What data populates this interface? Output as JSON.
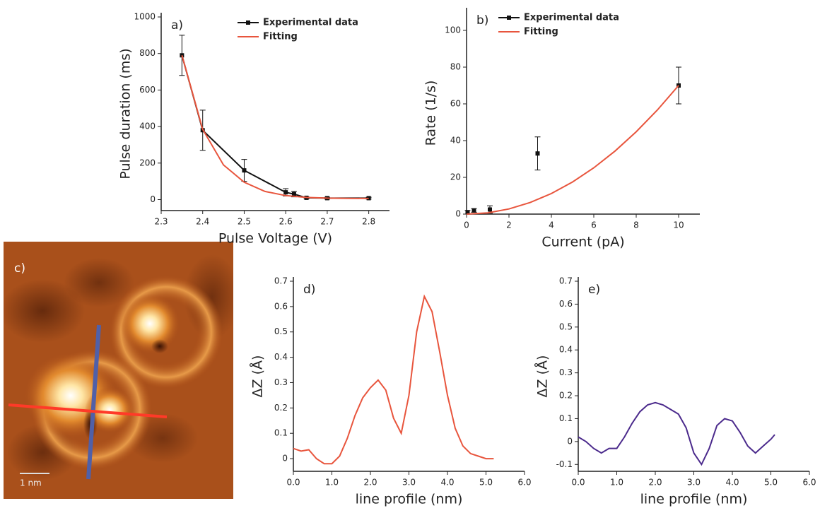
{
  "chart_data": [
    {
      "type": "errorline",
      "label": "a)",
      "xlabel": "Pulse Voltage (V)",
      "ylabel": "Pulse duration (ms)",
      "xlim": [
        2.3,
        2.85
      ],
      "ylim": [
        -60,
        1000
      ],
      "xticks": [
        2.3,
        2.4,
        2.5,
        2.6,
        2.7,
        2.8
      ],
      "yticks": [
        0,
        200,
        400,
        600,
        800,
        1000
      ],
      "legend": "upper right",
      "series": [
        {
          "name": "Experimental data",
          "color": "#111111",
          "marker": "square",
          "x": [
            2.35,
            2.4,
            2.5,
            2.6,
            2.62,
            2.65,
            2.7,
            2.8
          ],
          "values": [
            790,
            380,
            160,
            40,
            30,
            10,
            8,
            8
          ],
          "errors": [
            110,
            110,
            60,
            20,
            15,
            5,
            5,
            5
          ]
        },
        {
          "name": "Fitting",
          "color": "#e8553d",
          "x": [
            2.35,
            2.4,
            2.45,
            2.5,
            2.55,
            2.6,
            2.65,
            2.7,
            2.75,
            2.8
          ],
          "values": [
            790,
            385,
            190,
            95,
            45,
            22,
            12,
            8,
            7,
            6
          ]
        }
      ]
    },
    {
      "type": "errorline",
      "label": "b)",
      "xlabel": "Current (pA)",
      "ylabel": "Rate (1/s)",
      "xlim": [
        0,
        11
      ],
      "ylim": [
        0,
        110
      ],
      "xticks": [
        0,
        2,
        4,
        6,
        8,
        10
      ],
      "yticks": [
        0,
        20,
        40,
        60,
        80,
        100
      ],
      "legend": "upper left",
      "series": [
        {
          "name": "Experimental data",
          "color": "#111111",
          "marker": "square",
          "line": false,
          "x": [
            0.05,
            0.35,
            1.1,
            3.35,
            10
          ],
          "values": [
            1,
            2,
            2.5,
            33,
            70
          ],
          "errors": [
            1,
            1,
            2,
            9,
            10
          ]
        },
        {
          "name": "Fitting",
          "color": "#e8553d",
          "x": [
            0,
            1,
            2,
            3,
            4,
            5,
            6,
            7,
            8,
            9,
            10
          ],
          "values": [
            0,
            0.7,
            2.8,
            6.3,
            11.2,
            17.5,
            25.2,
            34.3,
            44.8,
            56.7,
            70
          ]
        }
      ]
    },
    {
      "type": "image",
      "label": "c)",
      "scale_bar": "1 nm"
    },
    {
      "type": "line",
      "label": "d)",
      "xlabel": "line profile (nm)",
      "ylabel": "ΔZ (Å)",
      "xlim": [
        0,
        6
      ],
      "ylim": [
        -0.05,
        0.7
      ],
      "xticks": [
        {
          "value": 0,
          "label": "0.0"
        },
        {
          "value": 1,
          "label": "1.0"
        },
        {
          "value": 2,
          "label": "2.0"
        },
        {
          "value": 3,
          "label": "3.0"
        },
        {
          "value": 4,
          "label": "4.0"
        },
        {
          "value": 5,
          "label": "5.0"
        },
        {
          "value": 6,
          "label": "6.0"
        }
      ],
      "yticks": [
        0,
        0.1,
        0.2,
        0.3,
        0.4,
        0.5,
        0.6,
        0.7
      ],
      "series": [
        {
          "color": "#e8553d",
          "x": [
            0,
            0.2,
            0.4,
            0.6,
            0.8,
            1.0,
            1.2,
            1.4,
            1.6,
            1.8,
            2.0,
            2.2,
            2.4,
            2.6,
            2.8,
            3.0,
            3.2,
            3.4,
            3.6,
            3.8,
            4.0,
            4.2,
            4.4,
            4.6,
            4.8,
            5.0,
            5.2
          ],
          "values": [
            0.04,
            0.03,
            0.035,
            0.0,
            -0.02,
            -0.02,
            0.01,
            0.08,
            0.17,
            0.24,
            0.28,
            0.31,
            0.27,
            0.16,
            0.1,
            0.25,
            0.5,
            0.64,
            0.58,
            0.42,
            0.25,
            0.12,
            0.05,
            0.02,
            0.01,
            0.0,
            0.0
          ]
        }
      ]
    },
    {
      "type": "line",
      "label": "e)",
      "xlabel": "line profile (nm)",
      "ylabel": "ΔZ (Å)",
      "xlim": [
        0,
        6
      ],
      "ylim": [
        -0.13,
        0.7
      ],
      "xticks": [
        {
          "value": 0,
          "label": "0.0"
        },
        {
          "value": 1,
          "label": "1.0"
        },
        {
          "value": 2,
          "label": "2.0"
        },
        {
          "value": 3,
          "label": "3.0"
        },
        {
          "value": 4,
          "label": "4.0"
        },
        {
          "value": 5,
          "label": "5.0"
        },
        {
          "value": 6,
          "label": "6.0"
        }
      ],
      "yticks": [
        -0.1,
        0,
        0.1,
        0.2,
        0.3,
        0.4,
        0.5,
        0.6,
        0.7
      ],
      "series": [
        {
          "color": "#4b2a8c",
          "x": [
            0,
            0.2,
            0.4,
            0.6,
            0.8,
            1.0,
            1.2,
            1.4,
            1.6,
            1.8,
            2.0,
            2.2,
            2.4,
            2.6,
            2.8,
            3.0,
            3.2,
            3.4,
            3.6,
            3.8,
            4.0,
            4.2,
            4.4,
            4.6,
            4.8,
            5.0,
            5.1
          ],
          "values": [
            0.02,
            0.0,
            -0.03,
            -0.05,
            -0.03,
            -0.03,
            0.02,
            0.08,
            0.13,
            0.16,
            0.17,
            0.16,
            0.14,
            0.12,
            0.06,
            -0.05,
            -0.1,
            -0.03,
            0.07,
            0.1,
            0.09,
            0.04,
            -0.02,
            -0.05,
            -0.02,
            0.01,
            0.03
          ]
        }
      ]
    }
  ]
}
